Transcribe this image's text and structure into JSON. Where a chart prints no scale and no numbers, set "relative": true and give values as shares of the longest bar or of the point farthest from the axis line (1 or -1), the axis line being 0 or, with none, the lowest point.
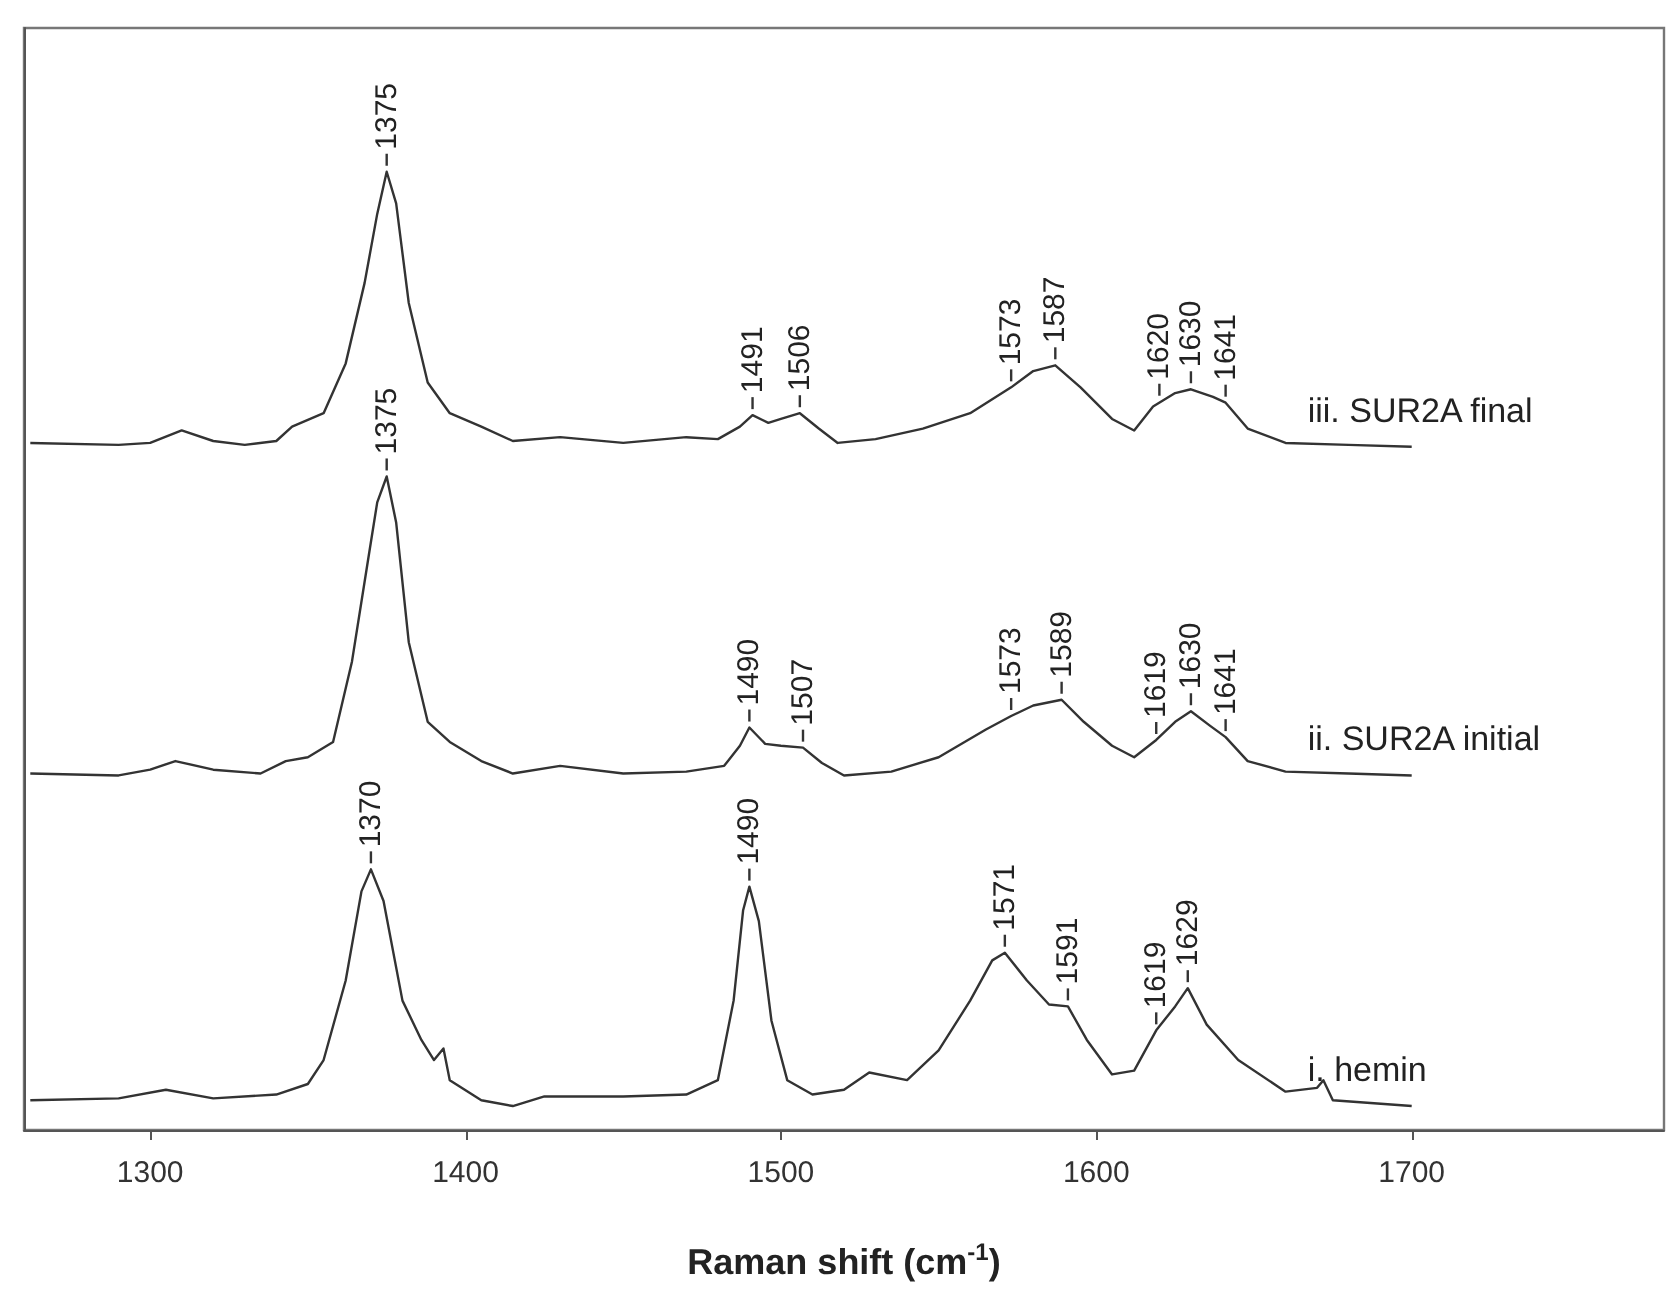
{
  "chart_data": {
    "type": "line",
    "xlabel": "Raman shift (cm$^{-1}$)",
    "relative": true,
    "xlim": [
      1260,
      1780
    ],
    "xticks": [
      1300,
      1400,
      1500,
      1600,
      1700
    ],
    "legend": false,
    "grid": false,
    "marker": "none",
    "line_style": "solid",
    "series": [
      {
        "name": "iii. SUR2A final",
        "color": "#333333",
        "x": [
          1262,
          1290,
          1300,
          1310,
          1320,
          1330,
          1340,
          1345,
          1355,
          1362,
          1368,
          1372,
          1375,
          1378,
          1382,
          1388,
          1395,
          1405,
          1415,
          1430,
          1450,
          1470,
          1480,
          1487,
          1491,
          1496,
          1500,
          1506,
          1512,
          1518,
          1530,
          1545,
          1560,
          1573,
          1580,
          1587,
          1595,
          1605,
          1612,
          1618,
          1625,
          1630,
          1637,
          1641,
          1648,
          1660,
          1680,
          1700
        ],
        "values": [
          0.717,
          0.715,
          0.717,
          0.73,
          0.719,
          0.715,
          0.719,
          0.734,
          0.748,
          0.8,
          0.884,
          0.956,
          1,
          0.967,
          0.863,
          0.78,
          0.748,
          0.734,
          0.719,
          0.723,
          0.717,
          0.723,
          0.721,
          0.734,
          0.746,
          0.738,
          0.742,
          0.748,
          0.732,
          0.717,
          0.721,
          0.732,
          0.748,
          0.775,
          0.792,
          0.798,
          0.775,
          0.742,
          0.73,
          0.755,
          0.769,
          0.773,
          0.765,
          0.759,
          0.732,
          0.717,
          0.715,
          0.713
        ]
      },
      {
        "name": "ii. SUR2A initial",
        "color": "#333333",
        "x": [
          1262,
          1290,
          1300,
          1308,
          1320,
          1335,
          1343,
          1350,
          1358,
          1364,
          1369,
          1372,
          1375,
          1378,
          1382,
          1388,
          1395,
          1405,
          1415,
          1430,
          1450,
          1470,
          1482,
          1487,
          1490,
          1495,
          1500,
          1507,
          1513,
          1520,
          1535,
          1550,
          1565,
          1573,
          1580,
          1589,
          1596,
          1605,
          1612,
          1619,
          1625,
          1630,
          1636,
          1641,
          1648,
          1660,
          1680,
          1700
        ],
        "values": [
          0.372,
          0.37,
          0.376,
          0.385,
          0.376,
          0.372,
          0.385,
          0.389,
          0.405,
          0.489,
          0.593,
          0.655,
          0.682,
          0.634,
          0.509,
          0.426,
          0.405,
          0.385,
          0.372,
          0.38,
          0.372,
          0.374,
          0.38,
          0.401,
          0.42,
          0.403,
          0.401,
          0.399,
          0.383,
          0.37,
          0.374,
          0.389,
          0.418,
          0.432,
          0.443,
          0.449,
          0.426,
          0.401,
          0.389,
          0.407,
          0.426,
          0.437,
          0.422,
          0.41,
          0.385,
          0.374,
          0.372,
          0.37
        ]
      },
      {
        "name": "i. hemin",
        "color": "#333333",
        "x": [
          1262,
          1290,
          1305,
          1320,
          1340,
          1350,
          1355,
          1362,
          1367,
          1370,
          1374,
          1380,
          1386,
          1390,
          1393,
          1395,
          1405,
          1415,
          1425,
          1450,
          1470,
          1480,
          1485,
          1488,
          1490,
          1493,
          1497,
          1502,
          1510,
          1520,
          1528,
          1540,
          1550,
          1560,
          1567,
          1571,
          1578,
          1585,
          1591,
          1597,
          1605,
          1612,
          1619,
          1625,
          1629,
          1635,
          1645,
          1660,
          1670,
          1672,
          1675,
          1700
        ],
        "values": [
          0.031,
          0.033,
          0.042,
          0.033,
          0.037,
          0.048,
          0.073,
          0.156,
          0.249,
          0.272,
          0.239,
          0.135,
          0.094,
          0.073,
          0.085,
          0.052,
          0.031,
          0.025,
          0.035,
          0.035,
          0.037,
          0.052,
          0.135,
          0.229,
          0.254,
          0.218,
          0.114,
          0.052,
          0.037,
          0.042,
          0.06,
          0.052,
          0.083,
          0.135,
          0.177,
          0.185,
          0.156,
          0.131,
          0.129,
          0.094,
          0.058,
          0.062,
          0.104,
          0.129,
          0.148,
          0.11,
          0.073,
          0.04,
          0.044,
          0.052,
          0.031,
          0.025
        ]
      }
    ],
    "annotations": [
      {
        "text": "1375",
        "x": 1375,
        "y": 1
      },
      {
        "text": "1491",
        "x": 1491,
        "y": 0.746
      },
      {
        "text": "1506",
        "x": 1506,
        "y": 0.748
      },
      {
        "text": "1573",
        "x": 1573,
        "y": 0.775
      },
      {
        "text": "1587",
        "x": 1587,
        "y": 0.798
      },
      {
        "text": "1620",
        "x": 1620,
        "y": 0.76
      },
      {
        "text": "1630",
        "x": 1630,
        "y": 0.773
      },
      {
        "text": "1641",
        "x": 1641,
        "y": 0.759
      },
      {
        "text": "1375",
        "x": 1375,
        "y": 0.682
      },
      {
        "text": "1490",
        "x": 1490,
        "y": 0.42
      },
      {
        "text": "1507",
        "x": 1507,
        "y": 0.399
      },
      {
        "text": "1573",
        "x": 1573,
        "y": 0.432
      },
      {
        "text": "1589",
        "x": 1589,
        "y": 0.449
      },
      {
        "text": "1619",
        "x": 1619,
        "y": 0.407
      },
      {
        "text": "1630",
        "x": 1630,
        "y": 0.437
      },
      {
        "text": "1641",
        "x": 1641,
        "y": 0.41
      },
      {
        "text": "1370",
        "x": 1370,
        "y": 0.272
      },
      {
        "text": "1490",
        "x": 1490,
        "y": 0.254
      },
      {
        "text": "1571",
        "x": 1571,
        "y": 0.185
      },
      {
        "text": "1591",
        "x": 1591,
        "y": 0.129
      },
      {
        "text": "1619",
        "x": 1619,
        "y": 0.104
      },
      {
        "text": "1629",
        "x": 1629,
        "y": 0.148
      }
    ]
  }
}
